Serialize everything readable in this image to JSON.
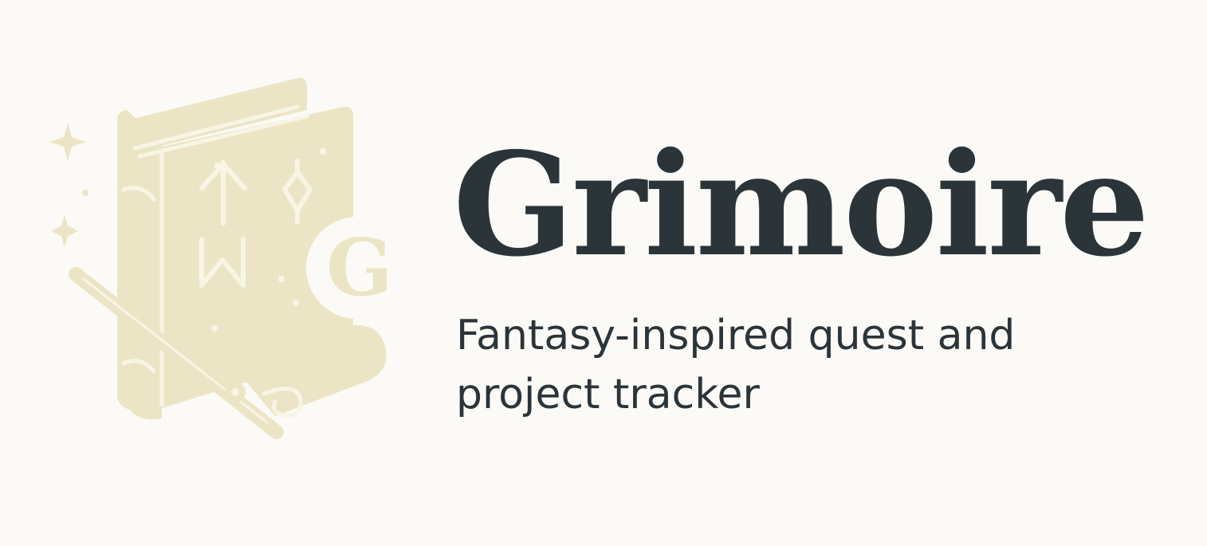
{
  "brand": {
    "name": "Grimoire",
    "tagline": "Fantasy-inspired quest and project tracker",
    "logo_letter": "G",
    "colors": {
      "background": "#fbfaf6",
      "emblem": "#ece5c5",
      "emblem_detail": "#f8f5e6",
      "text": "#2b3439"
    }
  },
  "emblem_icons": [
    "spellbook-icon",
    "sparkle-icon",
    "arrow-rune-icon",
    "diamond-rune-icon",
    "w-rune-icon",
    "magic-wand-icon",
    "scroll-icon"
  ]
}
